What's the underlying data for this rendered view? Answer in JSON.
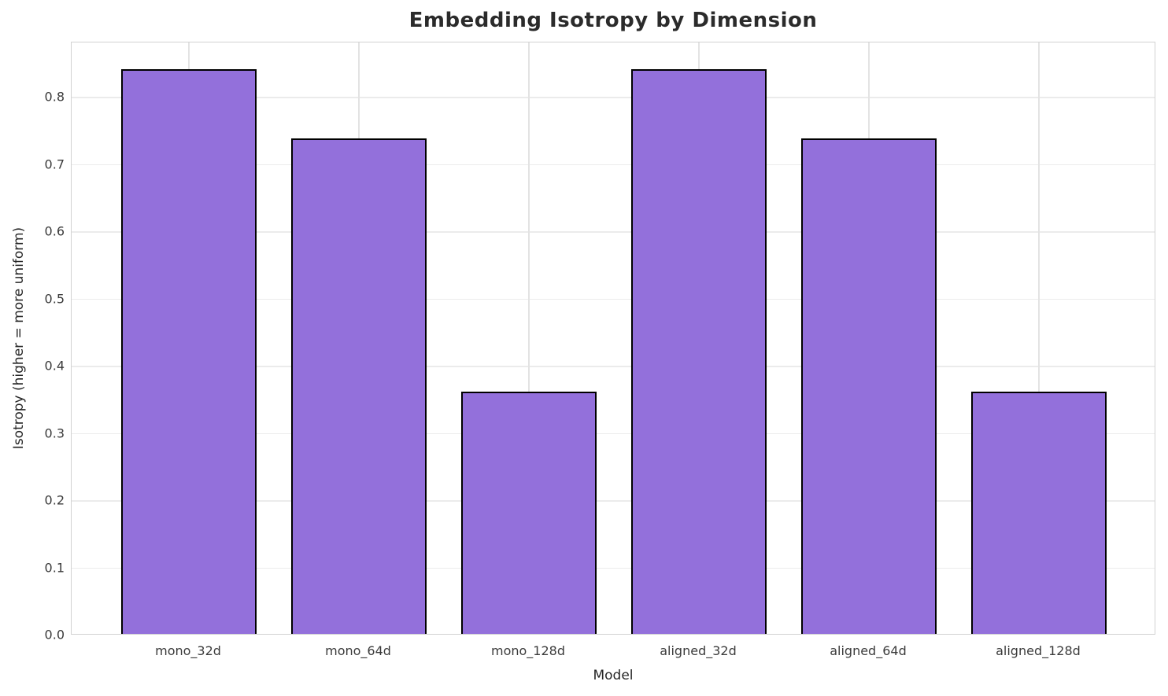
{
  "chart_data": {
    "type": "bar",
    "title": "Embedding Isotropy by Dimension",
    "xlabel": "Model",
    "ylabel": "Isotropy (higher = more uniform)",
    "categories": [
      "mono_32d",
      "mono_64d",
      "mono_128d",
      "aligned_32d",
      "aligned_64d",
      "aligned_128d"
    ],
    "values": [
      0.84,
      0.737,
      0.36,
      0.84,
      0.737,
      0.36
    ],
    "ylim": [
      0,
      0.882
    ],
    "yticks": [
      0.0,
      0.1,
      0.2,
      0.3,
      0.4,
      0.5,
      0.6,
      0.7,
      0.8
    ],
    "ytick_labels": [
      "0.0",
      "0.1",
      "0.2",
      "0.3",
      "0.4",
      "0.5",
      "0.6",
      "0.7",
      "0.8"
    ],
    "grid": true,
    "legend": false,
    "colors": {
      "bar_fill": "#9370DB",
      "bar_edge": "#000000",
      "grid_color": "#ebebeb",
      "axes_border": "#d2d2d2",
      "text": "#2b2b2b"
    }
  }
}
